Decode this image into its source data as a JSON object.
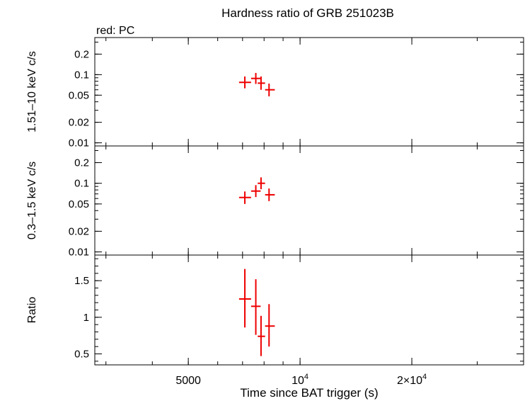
{
  "title": "Hardness ratio of GRB 251023B",
  "subtitle": "red: PC",
  "xlabel": "Time since BAT trigger (s)",
  "colors": {
    "data": "#ee0000",
    "axes": "#000000",
    "background": "#ffffff"
  },
  "chart_data": {
    "type": "scatter",
    "x_scale": "log",
    "xlim": [
      2800,
      40000
    ],
    "xticks": [
      {
        "value": 5000,
        "label": "5000",
        "sup": ""
      },
      {
        "value": 10000,
        "label": "10",
        "sup": "4"
      },
      {
        "value": 20000,
        "label": "2×10",
        "sup": "4"
      }
    ],
    "panels": [
      {
        "ylabel": "1.51–10 keV c/s",
        "y_scale": "log",
        "ylim": [
          0.009,
          0.35
        ],
        "yticks": [
          {
            "value": 0.01,
            "label": "0.01"
          },
          {
            "value": 0.02,
            "label": "0.02"
          },
          {
            "value": 0.05,
            "label": "0.05"
          },
          {
            "value": 0.1,
            "label": "0.1"
          },
          {
            "value": 0.2,
            "label": "0.2"
          }
        ],
        "points": [
          {
            "x": 7100,
            "xerr": [
              6850,
              7380
            ],
            "y": 0.077,
            "yerr": [
              0.063,
              0.094
            ]
          },
          {
            "x": 7600,
            "xerr": [
              7380,
              7830
            ],
            "y": 0.088,
            "yerr": [
              0.073,
              0.106
            ]
          },
          {
            "x": 7850,
            "xerr": [
              7690,
              8050
            ],
            "y": 0.075,
            "yerr": [
              0.06,
              0.094
            ]
          },
          {
            "x": 8250,
            "xerr": [
              8050,
              8550
            ],
            "y": 0.06,
            "yerr": [
              0.048,
              0.074
            ]
          }
        ]
      },
      {
        "ylabel": "0.3–1.5 keV c/s",
        "y_scale": "log",
        "ylim": [
          0.009,
          0.35
        ],
        "yticks": [
          {
            "value": 0.01,
            "label": "0.01"
          },
          {
            "value": 0.02,
            "label": "0.02"
          },
          {
            "value": 0.05,
            "label": "0.05"
          },
          {
            "value": 0.1,
            "label": "0.1"
          },
          {
            "value": 0.2,
            "label": "0.2"
          }
        ],
        "points": [
          {
            "x": 7100,
            "xerr": [
              6850,
              7380
            ],
            "y": 0.062,
            "yerr": [
              0.05,
              0.076
            ]
          },
          {
            "x": 7600,
            "xerr": [
              7380,
              7830
            ],
            "y": 0.077,
            "yerr": [
              0.063,
              0.094
            ]
          },
          {
            "x": 7850,
            "xerr": [
              7690,
              8050
            ],
            "y": 0.1,
            "yerr": [
              0.082,
              0.122
            ]
          },
          {
            "x": 8250,
            "xerr": [
              8050,
              8550
            ],
            "y": 0.068,
            "yerr": [
              0.055,
              0.084
            ]
          }
        ]
      },
      {
        "ylabel": "Ratio",
        "y_scale": "linear",
        "ylim": [
          0.35,
          1.85
        ],
        "yticks": [
          {
            "value": 0.5,
            "label": "0.5"
          },
          {
            "value": 1,
            "label": "1"
          },
          {
            "value": 1.5,
            "label": "1.5"
          }
        ],
        "points": [
          {
            "x": 7100,
            "xerr": [
              6850,
              7380
            ],
            "y": 1.25,
            "yerr": [
              0.86,
              1.66
            ]
          },
          {
            "x": 7600,
            "xerr": [
              7380,
              7830
            ],
            "y": 1.15,
            "yerr": [
              0.76,
              1.52
            ]
          },
          {
            "x": 7850,
            "xerr": [
              7690,
              8050
            ],
            "y": 0.74,
            "yerr": [
              0.47,
              1.02
            ]
          },
          {
            "x": 8250,
            "xerr": [
              8050,
              8550
            ],
            "y": 0.88,
            "yerr": [
              0.6,
              1.18
            ]
          }
        ]
      }
    ]
  }
}
